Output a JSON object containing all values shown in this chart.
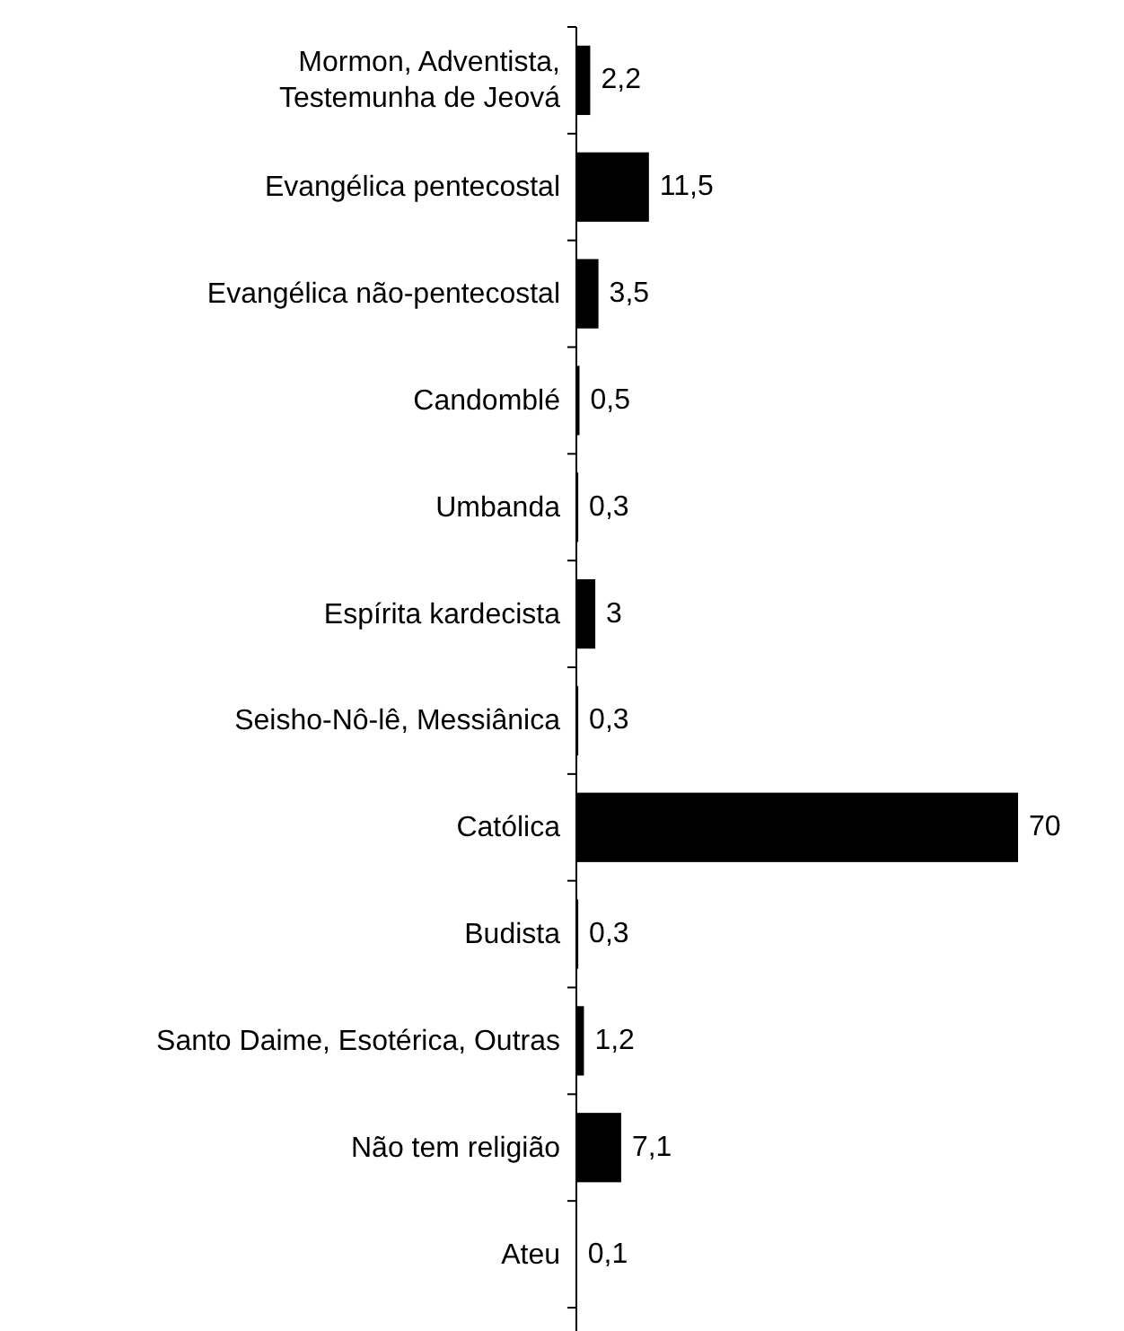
{
  "chart_data": {
    "type": "bar",
    "orientation": "horizontal",
    "categories": [
      "Mormon, Adventista,\nTestemunha de Jeová",
      "Evangélica pentecostal",
      "Evangélica não-pentecostal",
      "Candomblé",
      "Umbanda",
      "Espírita kardecista",
      "Seisho-Nô-lê, Messiânica",
      "Católica",
      "Budista",
      "Santo Daime, Esotérica, Outras",
      "Não tem religião",
      "Ateu"
    ],
    "values": [
      2.2,
      11.5,
      3.5,
      0.5,
      0.3,
      3,
      0.3,
      70,
      0.3,
      1.2,
      7.1,
      0.1
    ],
    "value_labels": [
      "2,2",
      "11,5",
      "3,5",
      "0,5",
      "0,3",
      "3",
      "0,3",
      "70",
      "0,3",
      "1,2",
      "7,1",
      "0,1"
    ],
    "color": "#000000"
  }
}
